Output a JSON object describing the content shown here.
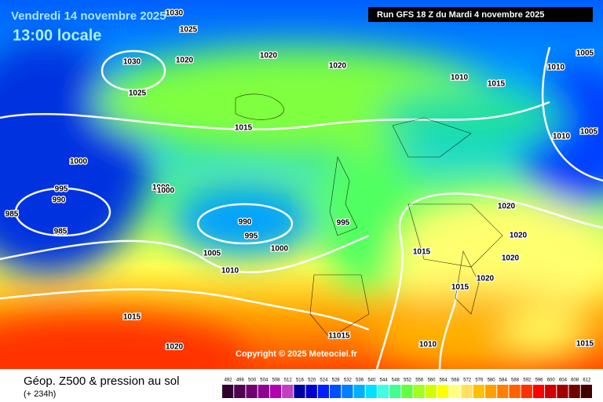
{
  "header": {
    "valid_date": "Vendredi 14 novembre 2025",
    "local_time": "13:00 locale",
    "run": "Run GFS 18 Z du Mardi 4 novembre 2025"
  },
  "copyright": "Copyright © 2025 Meteociel.fr",
  "footer": {
    "title": "Géop. Z500 & pression au sol",
    "lead_time": "(+ 234h)"
  },
  "isobar_labels": [
    "1030",
    "1025",
    "1030",
    "1020",
    "1020",
    "1020",
    "1025",
    "1010",
    "1015",
    "1005",
    "1010",
    "1015",
    "1010",
    "1005",
    "1000",
    "995",
    "990",
    "1000",
    "1000",
    "985",
    "985",
    "990",
    "995",
    "995",
    "1000",
    "1005",
    "1010",
    "1020",
    "1020",
    "1020",
    "1015",
    "1020",
    "1015",
    "1015",
    "1020",
    "11015",
    "1010",
    "1015"
  ],
  "legend": {
    "values": [
      492,
      496,
      500,
      504,
      508,
      512,
      516,
      520,
      524,
      528,
      532,
      536,
      540,
      544,
      548,
      552,
      556,
      560,
      564,
      568,
      572,
      576,
      580,
      584,
      588,
      592,
      596,
      600,
      604,
      608,
      612
    ],
    "colors": [
      "#300030",
      "#500050",
      "#700070",
      "#900090",
      "#b000b0",
      "#c040c0",
      "#0000a0",
      "#0000d0",
      "#0020ff",
      "#0050ff",
      "#0080ff",
      "#00b0ff",
      "#00e0ff",
      "#40ffe0",
      "#40ff90",
      "#60ff40",
      "#a0ff20",
      "#d0ff00",
      "#ffff00",
      "#ffff80",
      "#ffe060",
      "#ffc000",
      "#ffa000",
      "#ff8000",
      "#ff6000",
      "#ff3000",
      "#ff0000",
      "#d00000",
      "#a00000",
      "#700000",
      "#400000"
    ]
  }
}
